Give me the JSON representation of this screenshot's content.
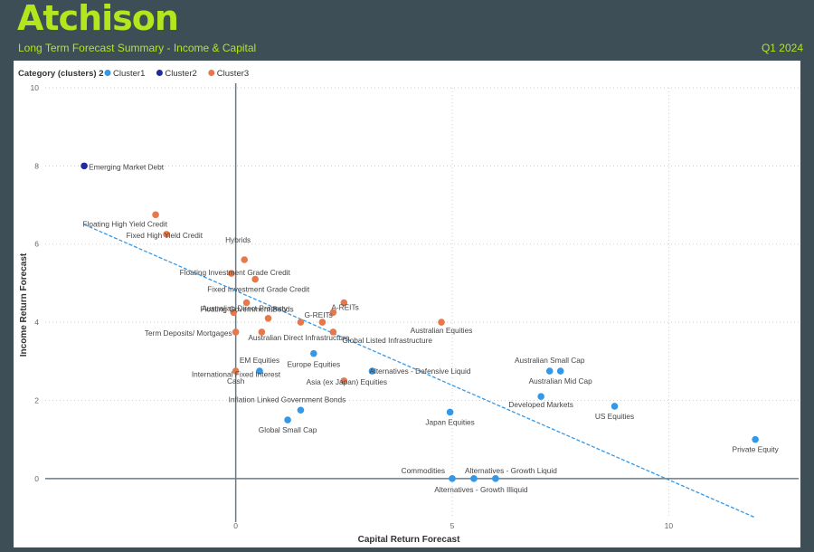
{
  "header": {
    "logo_text": "Atchison",
    "subtitle": "Long Term Forecast Summary - Income & Capital",
    "period": "Q1 2024"
  },
  "legend": {
    "title": "Category (clusters) 2",
    "items": [
      {
        "name": "Cluster1",
        "color": "#3498e8"
      },
      {
        "name": "Cluster2",
        "color": "#1f2aa0"
      },
      {
        "name": "Cluster3",
        "color": "#e8784a"
      }
    ]
  },
  "chart_data": {
    "type": "scatter",
    "xlabel": "Capital Return Forecast",
    "ylabel": "Income Return Forecast",
    "xlim": [
      -4.4,
      13.0
    ],
    "ylim": [
      -1.0,
      10.0
    ],
    "xticks": [
      0,
      5,
      10
    ],
    "yticks": [
      0,
      2,
      4,
      6,
      8,
      10
    ],
    "grid": true,
    "legend_position": "top-left",
    "trendline": {
      "x1": -3.5,
      "y1": 6.5,
      "x2": 12.0,
      "y2": -1.0
    },
    "points": [
      {
        "label": "Emerging Market Debt",
        "x": -3.5,
        "y": 8.0,
        "cluster": "Cluster2"
      },
      {
        "label": "Floating High Yield Credit",
        "x": -1.85,
        "y": 6.75,
        "cluster": "Cluster3"
      },
      {
        "label": "Fixed High Yield Credit",
        "x": -1.6,
        "y": 6.25,
        "cluster": "Cluster3"
      },
      {
        "label": "Hybrids",
        "x": 0.2,
        "y": 5.6,
        "cluster": "Cluster3"
      },
      {
        "label": "Floating Investment Grade Credit",
        "x": -0.1,
        "y": 5.25,
        "cluster": "Cluster3"
      },
      {
        "label": "Fixed Investment Grade Credit",
        "x": 0.45,
        "y": 5.1,
        "cluster": "Cluster3"
      },
      {
        "label": "Floating Government Bonds",
        "x": 0.25,
        "y": 4.5,
        "cluster": "Cluster3"
      },
      {
        "label": "Australian Direct Property",
        "x": -0.05,
        "y": 4.25,
        "cluster": "Cluster3"
      },
      {
        "label": "",
        "x": 0.75,
        "y": 4.1,
        "cluster": "Cluster3"
      },
      {
        "label": "G-REITs",
        "x": 1.5,
        "y": 4.0,
        "cluster": "Cluster3"
      },
      {
        "label": "",
        "x": 2.0,
        "y": 4.0,
        "cluster": "Cluster3"
      },
      {
        "label": "A-REITs",
        "x": 2.25,
        "y": 4.25,
        "cluster": "Cluster3"
      },
      {
        "label": "",
        "x": 2.5,
        "y": 4.5,
        "cluster": "Cluster3"
      },
      {
        "label": "Australian Direct Infrastructure",
        "x": 0.6,
        "y": 3.75,
        "cluster": "Cluster3"
      },
      {
        "label": "Global Listed Infrastructure",
        "x": 2.25,
        "y": 3.75,
        "cluster": "Cluster3"
      },
      {
        "label": "Term Deposits/ Mortgages",
        "x": 0.0,
        "y": 3.75,
        "cluster": "Cluster3"
      },
      {
        "label": "Australian Equities",
        "x": 4.75,
        "y": 4.0,
        "cluster": "Cluster3"
      },
      {
        "label": "International Fixed Interest",
        "x": 1.8,
        "y": 3.2,
        "cluster": "Cluster1"
      },
      {
        "label": "Asia (ex Japan) Equities",
        "x": 2.5,
        "y": 2.5,
        "cluster": "Cluster3"
      },
      {
        "label": "Cash",
        "x": 0.0,
        "y": 2.75,
        "cluster": "Cluster3"
      },
      {
        "label": "EM Equities",
        "x": 0.55,
        "y": 2.75,
        "cluster": "Cluster1"
      },
      {
        "label": "Europe Equities",
        "x": 1.8,
        "y": 3.2,
        "cluster": "Cluster1",
        "label_only": true
      },
      {
        "label": "Alternatives - Defensive Liquid",
        "x": 3.15,
        "y": 2.75,
        "cluster": "Cluster1"
      },
      {
        "label": "Australian Small Cap",
        "x": 7.25,
        "y": 2.75,
        "cluster": "Cluster1"
      },
      {
        "label": "Australian Mid Cap",
        "x": 7.5,
        "y": 2.75,
        "cluster": "Cluster1"
      },
      {
        "label": "Developed Markets",
        "x": 7.05,
        "y": 2.1,
        "cluster": "Cluster1"
      },
      {
        "label": "Inflation Linked Government Bonds",
        "x": 1.5,
        "y": 1.75,
        "cluster": "Cluster1"
      },
      {
        "label": "Global Small Cap",
        "x": 1.2,
        "y": 1.5,
        "cluster": "Cluster1"
      },
      {
        "label": "Japan Equities",
        "x": 4.95,
        "y": 1.7,
        "cluster": "Cluster1"
      },
      {
        "label": "US Equities",
        "x": 8.75,
        "y": 1.85,
        "cluster": "Cluster1"
      },
      {
        "label": "Private Equity",
        "x": 12.0,
        "y": 1.0,
        "cluster": "Cluster1"
      },
      {
        "label": "Commodities",
        "x": 5.0,
        "y": 0.0,
        "cluster": "Cluster1"
      },
      {
        "label": "Alternatives - Growth Liquid",
        "x": 5.5,
        "y": 0.0,
        "cluster": "Cluster1"
      },
      {
        "label": "Alternatives - Growth Illiquid",
        "x": 6.0,
        "y": 0.0,
        "cluster": "Cluster1"
      }
    ]
  }
}
